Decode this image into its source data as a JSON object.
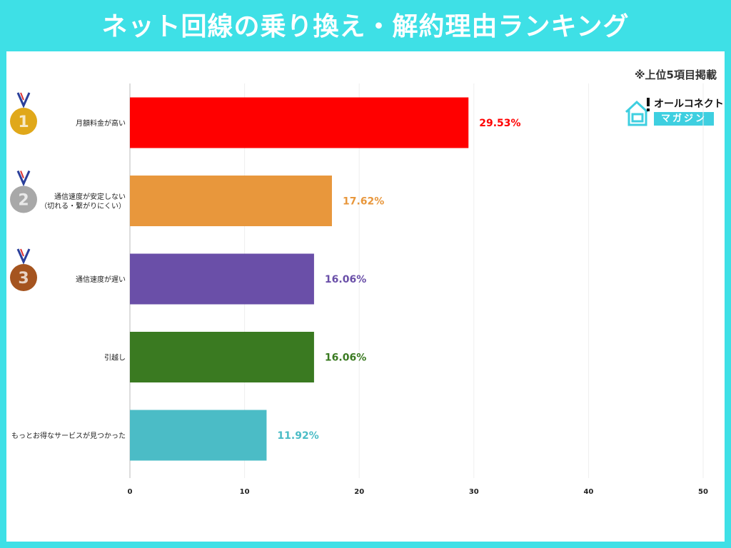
{
  "title": "ネット回線の乗り換え・解約理由ランキング",
  "note": "※上位5項目掲載",
  "logo": {
    "line1": "オールコネクト",
    "line2": "マガジン"
  },
  "chart_data": {
    "type": "bar",
    "orientation": "horizontal",
    "categories": [
      "月額料金が高い",
      "通信速度が安定しない\n（切れる・繋がりにくい）",
      "通信速度が遅い",
      "引越し",
      "もっとお得なサービスが見つかった"
    ],
    "values": [
      29.53,
      17.62,
      16.06,
      16.06,
      11.92
    ],
    "value_labels": [
      "29.53%",
      "17.62%",
      "16.06%",
      "16.06%",
      "11.92%"
    ],
    "colors": [
      "#ff0000",
      "#e8973c",
      "#6a4fa8",
      "#3a7a21",
      "#4bbcc6"
    ],
    "xlim": [
      0,
      50
    ],
    "xticks": [
      "0",
      "10",
      "20",
      "30",
      "40",
      "50"
    ],
    "grid": true,
    "medals": [
      {
        "rank": "1",
        "color": "#e0a81a"
      },
      {
        "rank": "2",
        "color": "#a8a8a8"
      },
      {
        "rank": "3",
        "color": "#a5541f"
      }
    ]
  }
}
